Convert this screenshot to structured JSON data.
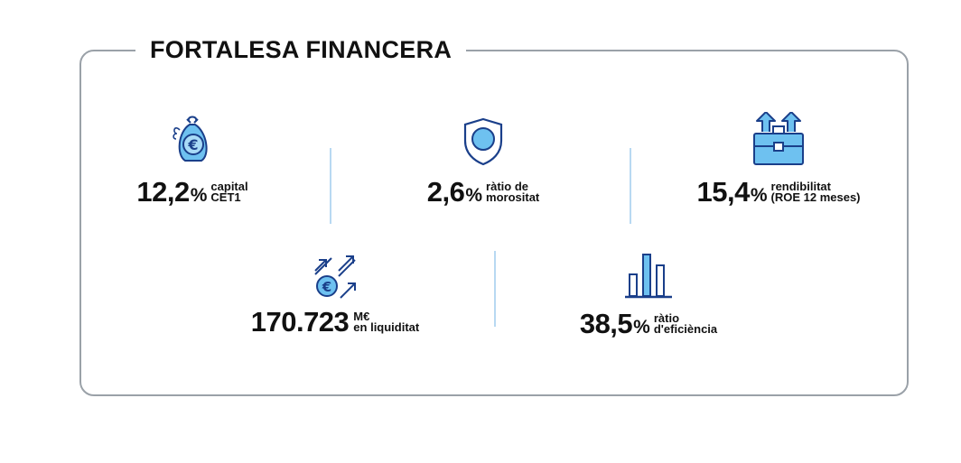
{
  "header": {
    "title": "FORTALESA FINANCERA"
  },
  "stats": [
    {
      "icon": "money-bag-euro-icon",
      "value": "12,2",
      "unit": "%",
      "label_line1": "capital",
      "label_line2": "CET1"
    },
    {
      "icon": "shield-icon",
      "value": "2,6",
      "unit": "%",
      "label_line1": "ràtio de",
      "label_line2": "morositat"
    },
    {
      "icon": "briefcase-growth-icon",
      "value": "15,4",
      "unit": "%",
      "label_line1": "rendibilitat",
      "label_line2": "(ROE 12 meses)"
    },
    {
      "icon": "euro-arrows-icon",
      "value": "170.723",
      "unit": "",
      "label_line1": "M€",
      "label_line2": "en liquiditat"
    },
    {
      "icon": "bar-chart-icon",
      "value": "38,5",
      "unit": "%",
      "label_line1": "ràtio",
      "label_line2": "d'eficiència"
    }
  ],
  "colors": {
    "accent_fill": "#6ec1f0",
    "icon_stroke": "#1a3f8a",
    "divider": "#b8d9f2",
    "frame": "#9aa1a8"
  }
}
